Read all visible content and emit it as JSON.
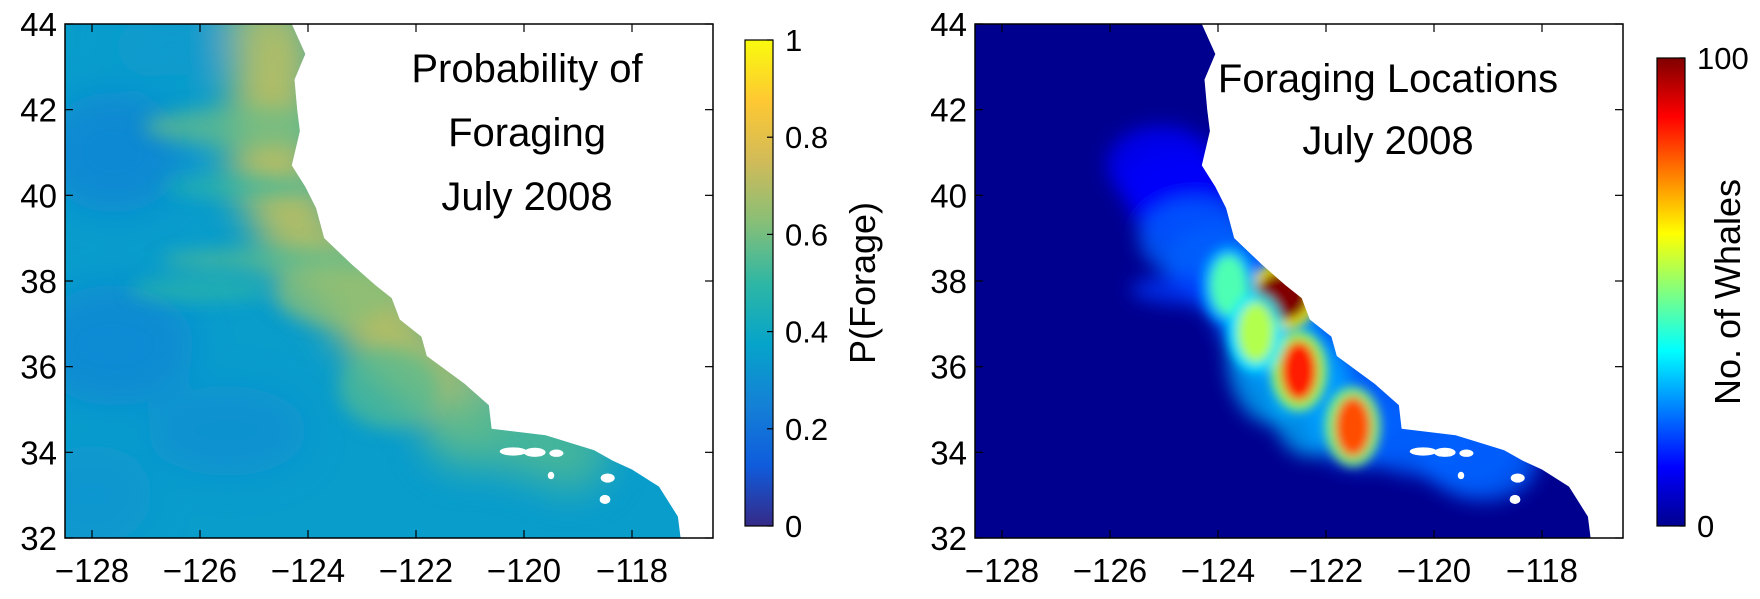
{
  "chart_data": [
    {
      "type": "heatmap",
      "title_lines": [
        "Probability of",
        "Foraging",
        "July 2008"
      ],
      "xlabel": "",
      "ylabel": "",
      "xlim": [
        -128.5,
        -116.5
      ],
      "ylim": [
        32,
        44
      ],
      "xticks": [
        -128,
        -126,
        -124,
        -122,
        -120,
        -118
      ],
      "yticks": [
        32,
        34,
        36,
        38,
        40,
        42,
        44
      ],
      "xtick_labels": [
        "−128",
        "−126",
        "−124",
        "−122",
        "−120",
        "−118"
      ],
      "ytick_labels": [
        "32",
        "34",
        "36",
        "38",
        "40",
        "42",
        "44"
      ],
      "colorbar": {
        "label": "P(Forage)",
        "range": [
          0,
          1
        ],
        "ticks": [
          0,
          0.2,
          0.4,
          0.6,
          0.8,
          1
        ],
        "tick_labels": [
          "0",
          "0.2",
          "0.4",
          "0.6",
          "0.8",
          "1"
        ],
        "colormap": "parula",
        "colors": [
          "#352a87",
          "#0f5cdd",
          "#1481d6",
          "#06a4ca",
          "#2eb7a4",
          "#87bf77",
          "#d1bb59",
          "#fec832",
          "#f9fb0e"
        ]
      },
      "ocean_background_value": 0.35,
      "coastal_value": 0.7,
      "land_color": "#ffffff"
    },
    {
      "type": "heatmap",
      "title_lines": [
        "Foraging Locations",
        "July 2008"
      ],
      "xlabel": "",
      "ylabel": "",
      "xlim": [
        -128.5,
        -116.5
      ],
      "ylim": [
        32,
        44
      ],
      "xticks": [
        -128,
        -126,
        -124,
        -122,
        -120,
        -118
      ],
      "yticks": [
        32,
        34,
        36,
        38,
        40,
        42,
        44
      ],
      "xtick_labels": [
        "−128",
        "−126",
        "−124",
        "−122",
        "−120",
        "−118"
      ],
      "ytick_labels": [
        "32",
        "34",
        "36",
        "38",
        "40",
        "42",
        "44"
      ],
      "colorbar": {
        "label": "No. of Whales",
        "range": [
          0,
          100
        ],
        "ticks": [
          0,
          100
        ],
        "tick_labels": [
          "0",
          "100"
        ],
        "colormap": "jet",
        "colors": [
          "#00008f",
          "#0000ff",
          "#0080ff",
          "#00ffff",
          "#80ff80",
          "#ffff00",
          "#ff8000",
          "#ff0000",
          "#800000"
        ]
      },
      "hotspots": [
        {
          "lon": -122.8,
          "lat": 37.65,
          "value": 100
        },
        {
          "lon": -122.5,
          "lat": 35.9,
          "value": 85
        },
        {
          "lon": -121.5,
          "lat": 34.6,
          "value": 80
        },
        {
          "lon": -123.8,
          "lat": 37.9,
          "value": 45
        },
        {
          "lon": -123.3,
          "lat": 36.8,
          "value": 55
        }
      ],
      "ocean_background_value": 0,
      "land_color": "#ffffff"
    }
  ]
}
